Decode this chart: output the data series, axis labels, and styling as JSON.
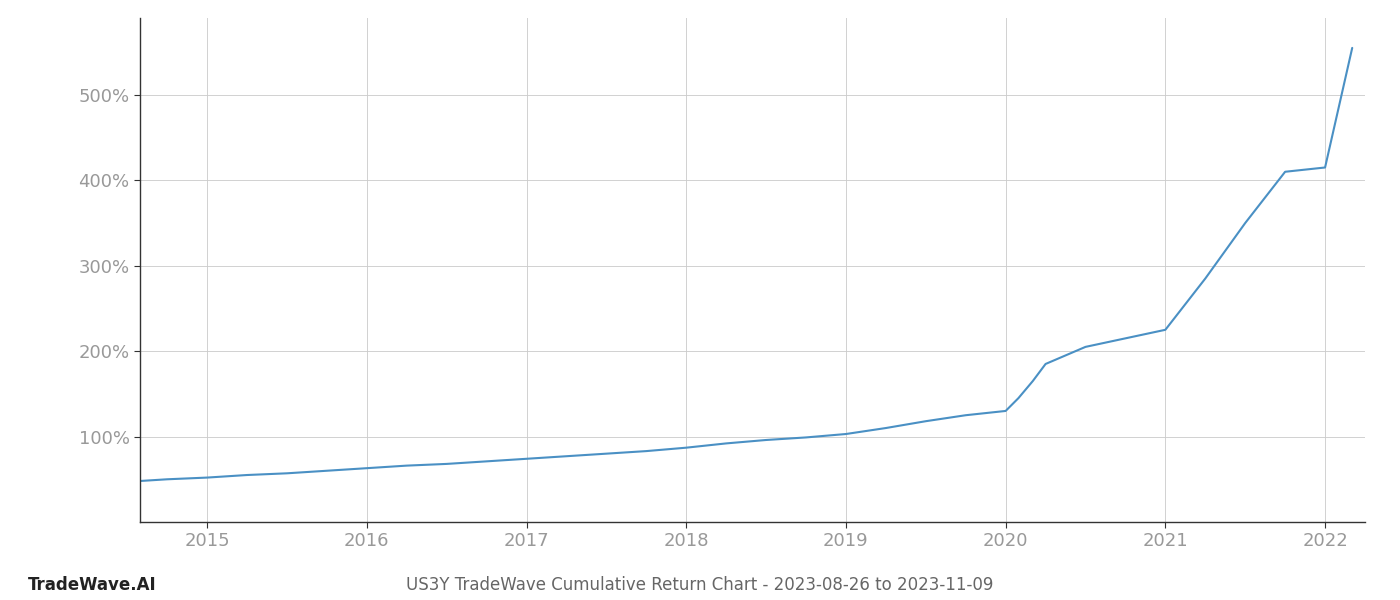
{
  "title": "US3Y TradeWave Cumulative Return Chart - 2023-08-26 to 2023-11-09",
  "footer_left": "TradeWave.AI",
  "footer_right": "US3Y TradeWave Cumulative Return Chart - 2023-08-26 to 2023-11-09",
  "line_color": "#4a90c4",
  "background_color": "#ffffff",
  "grid_color": "#cccccc",
  "tick_color": "#999999",
  "x_years": [
    2015,
    2016,
    2017,
    2018,
    2019,
    2020,
    2021,
    2022
  ],
  "y_ticks": [
    100,
    200,
    300,
    400,
    500
  ],
  "ylim": [
    0,
    590
  ],
  "xlim": [
    2014.58,
    2022.25
  ],
  "data_x": [
    2014.58,
    2014.75,
    2015.0,
    2015.25,
    2015.5,
    2015.75,
    2016.0,
    2016.25,
    2016.5,
    2016.75,
    2017.0,
    2017.25,
    2017.5,
    2017.75,
    2018.0,
    2018.25,
    2018.5,
    2018.75,
    2019.0,
    2019.25,
    2019.5,
    2019.75,
    2020.0,
    2020.08,
    2020.17,
    2020.25,
    2020.5,
    2020.75,
    2021.0,
    2021.25,
    2021.5,
    2021.75,
    2022.0,
    2022.17
  ],
  "data_y": [
    48,
    50,
    52,
    55,
    57,
    60,
    63,
    66,
    68,
    71,
    74,
    77,
    80,
    83,
    87,
    92,
    96,
    99,
    103,
    110,
    118,
    125,
    130,
    145,
    165,
    185,
    205,
    215,
    225,
    285,
    350,
    410,
    415,
    555
  ],
  "line_width": 1.5,
  "font_family": "DejaVu Sans",
  "tick_fontsize": 13,
  "footer_fontsize": 12
}
